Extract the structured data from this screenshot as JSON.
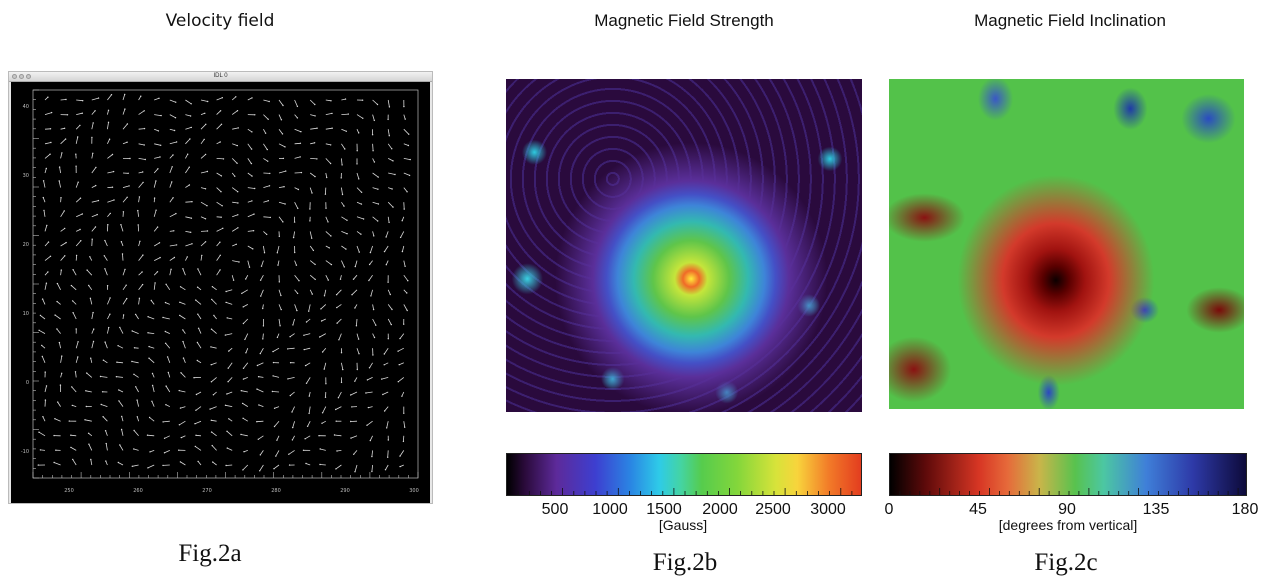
{
  "panels": [
    {
      "id": "a",
      "title": "Velocity field",
      "window_title": "IDL 0",
      "x_ticks": [
        "250",
        "260",
        "270",
        "280",
        "290",
        "300"
      ],
      "y_ticks": [
        "40",
        "30",
        "20",
        "10",
        "0",
        "-10"
      ],
      "fig_label": "Fig.2a"
    },
    {
      "id": "b",
      "title": "Magnetic Field Strength",
      "colorbar_ticks": [
        "500",
        "1000",
        "1500",
        "2000",
        "2500",
        "3000"
      ],
      "colorbar_unit": "[Gauss]",
      "fig_label": "Fig.2b"
    },
    {
      "id": "c",
      "title": "Magnetic Field Inclination",
      "colorbar_ticks": [
        "0",
        "45",
        "90",
        "135",
        "180"
      ],
      "colorbar_unit": "[degrees from vertical]",
      "fig_label": "Fig.2c"
    }
  ],
  "colors": {
    "velocity_background": "#000000",
    "arrow_color": "#d9d9d9",
    "umbra_core": "#f06a28",
    "field_background": "#2a0a3d",
    "inclination_green": "#53c24a"
  }
}
